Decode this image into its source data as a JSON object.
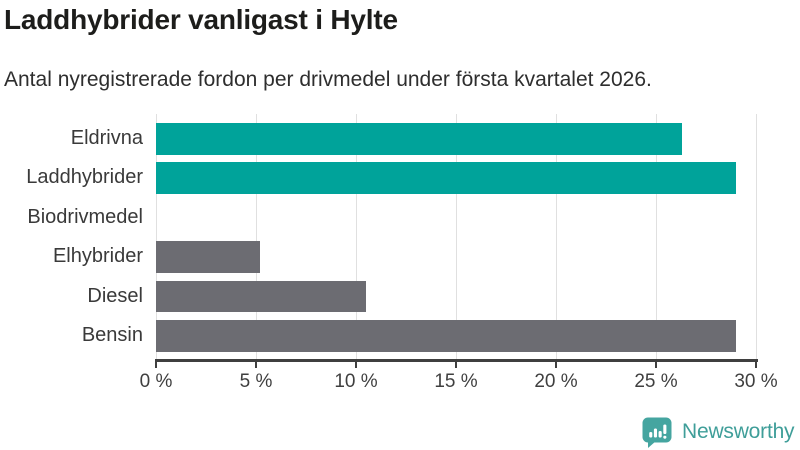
{
  "title": "Laddhybrider vanligast i Hylte",
  "subtitle": "Antal nyregistrerade fordon per drivmedel under första kvartalet 2026.",
  "branding": {
    "logo_text": "Newsworthy"
  },
  "colors": {
    "teal_bar": "#00a39a",
    "gray_bar": "#6c6c72",
    "gridline": "#e0e0e0",
    "axis": "#3f3f3f",
    "title_text": "#1d1d1b",
    "label_text": "#3a3a3a",
    "logo_teal": "#45a5a0"
  },
  "chart_data": {
    "type": "bar",
    "orientation": "horizontal",
    "title": "Laddhybrider vanligast i Hylte",
    "subtitle": "Antal nyregistrerade fordon per drivmedel under första kvartalet 2026.",
    "categories": [
      "Eldrivna",
      "Laddhybrider",
      "Biodrivmedel",
      "Elhybrider",
      "Diesel",
      "Bensin"
    ],
    "values": [
      26.3,
      29,
      0,
      5.2,
      10.5,
      29
    ],
    "unit": "%",
    "bar_colors": [
      "#00a39a",
      "#00a39a",
      "#6c6c72",
      "#6c6c72",
      "#6c6c72",
      "#6c6c72"
    ],
    "xlim": [
      0,
      30
    ],
    "tick_values": [
      0,
      5,
      10,
      15,
      20,
      25,
      30
    ],
    "x_ticks": [
      "0 %",
      "5 %",
      "10 %",
      "15 %",
      "20 %",
      "25 %",
      "30 %"
    ],
    "grid": true,
    "legend": false
  }
}
